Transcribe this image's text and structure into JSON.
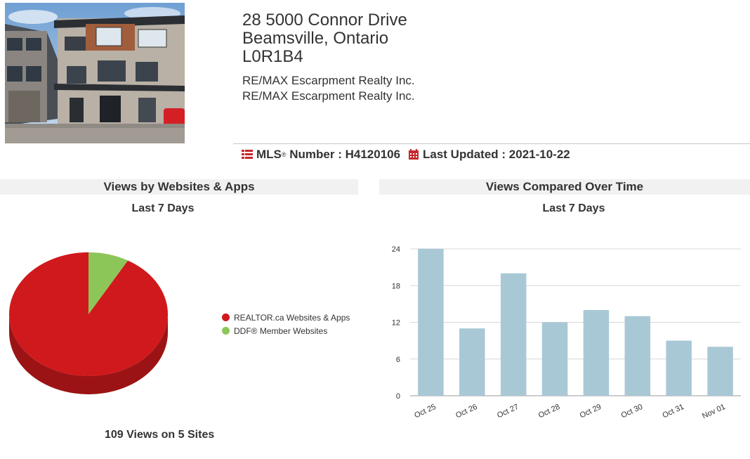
{
  "listing": {
    "address_line1": "28 5000 Connor Drive",
    "address_line2": "Beamsville, Ontario",
    "postal_code": "L0R1B4",
    "broker_1": "RE/MAX Escarpment Realty Inc.",
    "broker_2": "RE/MAX Escarpment Realty Inc.",
    "mls_label": "MLS",
    "mls_reg": "®",
    "mls_number_label": " Number : H4120106",
    "last_updated_label": "Last Updated : 2021-10-22"
  },
  "panels": {
    "websites_title": "Views by Websites & Apps",
    "websites_period": "Last 7 Days",
    "time_title": "Views Compared Over Time",
    "time_period": "Last 7 Days",
    "total_views": "109 Views on 5 Sites"
  },
  "colors": {
    "accent": "#c62828",
    "realtor": "#d0191c",
    "ddf": "#8dc658",
    "bar": "#a9c8d6"
  },
  "chart_data": [
    {
      "type": "pie",
      "series": [
        {
          "name": "REALTOR.ca Websites & Apps",
          "value": 100,
          "color": "#d0191c"
        },
        {
          "name": "DDF® Member Websites",
          "value": 9,
          "color": "#8dc658"
        }
      ],
      "legend": "right"
    },
    {
      "type": "bar",
      "categories": [
        "Oct 25",
        "Oct 26",
        "Oct 27",
        "Oct 28",
        "Oct 29",
        "Oct 30",
        "Oct 31",
        "Nov 01"
      ],
      "values": [
        24,
        11,
        20,
        12,
        14,
        13,
        9,
        8
      ],
      "ylim": [
        0,
        24
      ],
      "yticks": [
        "0",
        "6",
        "12",
        "18",
        "24"
      ],
      "grid": true,
      "color": "#a9c8d6"
    }
  ]
}
